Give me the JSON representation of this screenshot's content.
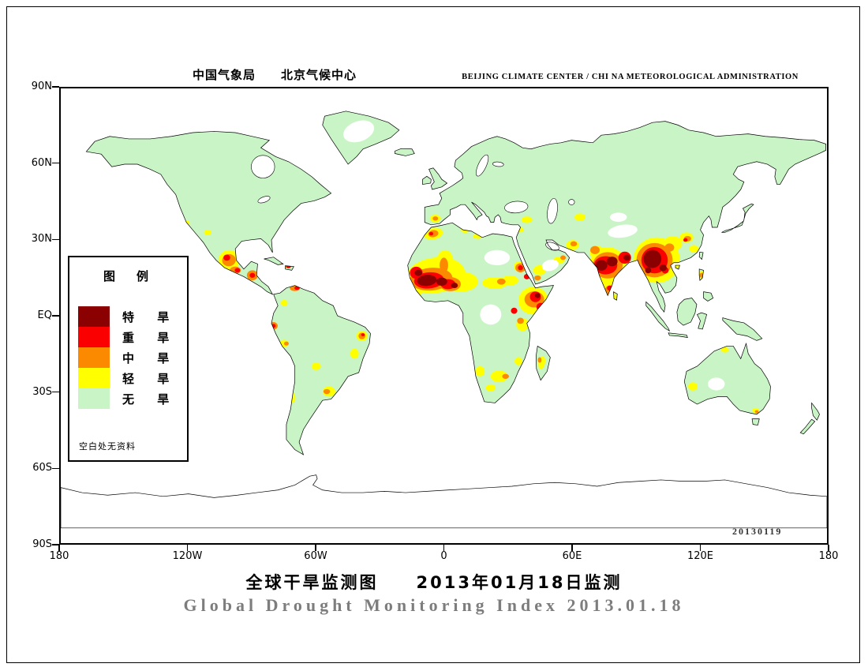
{
  "header": {
    "left": "中国气象局　　北京气候中心",
    "right": "BEIJING CLIMATE CENTER / CHI NA METEOROLOGICAL ADMINISTRATION"
  },
  "footer": {
    "title_cn": "全球干旱监测图　　2013年01月18日监测",
    "title_en": "Global Drought Monitoring Index  2013.01.18"
  },
  "map": {
    "datestamp": "20130119",
    "lat_ticks": [
      {
        "label": "90N",
        "lat": 90
      },
      {
        "label": "60N",
        "lat": 60
      },
      {
        "label": "30N",
        "lat": 30
      },
      {
        "label": "EQ",
        "lat": 0
      },
      {
        "label": "30S",
        "lat": -30
      },
      {
        "label": "60S",
        "lat": -60
      },
      {
        "label": "90S",
        "lat": -90
      }
    ],
    "lon_ticks": [
      {
        "label": "180",
        "lon": -180
      },
      {
        "label": "120W",
        "lon": -120
      },
      {
        "label": "60W",
        "lon": -60
      },
      {
        "label": "0",
        "lon": 0
      },
      {
        "label": "60E",
        "lon": 60
      },
      {
        "label": "120E",
        "lon": 120
      },
      {
        "label": "180",
        "lon": 180
      }
    ]
  },
  "legend": {
    "title": "图　例",
    "note": "空白处无资料",
    "items": [
      {
        "label": "特 旱",
        "level": "extreme"
      },
      {
        "label": "重 旱",
        "level": "severe"
      },
      {
        "label": "中 旱",
        "level": "moderate"
      },
      {
        "label": "轻 旱",
        "level": "light"
      },
      {
        "label": "无 旱",
        "level": "none"
      }
    ]
  },
  "colors": {
    "extreme": "#8b0000",
    "severe": "#fb0000",
    "moderate": "#fc8a00",
    "light": "#ffff00",
    "none": "#c9f5c6",
    "ocean": "#ffffff",
    "coastline": "#000000"
  },
  "chart_data": {
    "type": "map",
    "projection": "equirectangular",
    "lon_range": [
      -180,
      180
    ],
    "lat_range": [
      -90,
      90
    ],
    "title_cn": "全球干旱监测图　　2013年01月18日监测",
    "title_en": "Global Drought Monitoring Index  2013.01.18",
    "levels": [
      "light",
      "moderate",
      "severe",
      "extreme"
    ],
    "spot_format": "[lon, lat, rx_deg, ry_deg, rotation_deg, level]",
    "drought_spots": [
      [
        -4,
        16,
        14,
        7,
        -8,
        "light"
      ],
      [
        8,
        13.5,
        8,
        4,
        0,
        "light"
      ],
      [
        0.5,
        21.5,
        4,
        4.5,
        0,
        "light"
      ],
      [
        -13,
        11,
        4,
        3,
        0,
        "light"
      ],
      [
        -5,
        32.5,
        4.5,
        2.3,
        -10,
        "light"
      ],
      [
        -4,
        38.5,
        2.6,
        1.5,
        0,
        "light"
      ],
      [
        10,
        34,
        2,
        1.2,
        0,
        "light"
      ],
      [
        16,
        31.5,
        2.2,
        1.1,
        0,
        "light"
      ],
      [
        24,
        13,
        6,
        2.3,
        0,
        "light"
      ],
      [
        31,
        14,
        4,
        2,
        0,
        "light"
      ],
      [
        35.5,
        19.5,
        2.6,
        2,
        0,
        "light"
      ],
      [
        42,
        6,
        7,
        5.5,
        0,
        "light"
      ],
      [
        37,
        -3.5,
        3,
        2.5,
        0,
        "light"
      ],
      [
        26,
        -24,
        4,
        2.3,
        0,
        "light"
      ],
      [
        17,
        -22,
        2.2,
        2,
        0,
        "light"
      ],
      [
        22,
        -28.5,
        2.3,
        1.4,
        0,
        "light"
      ],
      [
        35,
        -18,
        1.8,
        1.6,
        0,
        "light"
      ],
      [
        46,
        -18.5,
        1.6,
        2.6,
        10,
        "light"
      ],
      [
        45,
        18,
        3,
        2,
        0,
        "light"
      ],
      [
        54,
        22,
        2.6,
        1.5,
        0,
        "light"
      ],
      [
        39,
        38,
        2.6,
        1.3,
        0,
        "light"
      ],
      [
        36,
        34,
        1.6,
        1,
        0,
        "light"
      ],
      [
        60.5,
        28,
        3,
        2,
        0,
        "light"
      ],
      [
        64,
        39,
        2.6,
        1.5,
        0,
        "light"
      ],
      [
        77,
        19,
        9,
        8.2,
        0,
        "light"
      ],
      [
        72,
        25,
        3.5,
        2.6,
        0,
        "light"
      ],
      [
        80.5,
        7.6,
        1.2,
        1,
        0,
        "light"
      ],
      [
        100,
        22,
        11,
        9,
        0,
        "light"
      ],
      [
        107.5,
        28.5,
        4.5,
        3,
        0,
        "light"
      ],
      [
        114,
        31,
        3.2,
        2,
        0,
        "light"
      ],
      [
        117.5,
        26.5,
        2.2,
        1.5,
        0,
        "light"
      ],
      [
        121,
        16,
        1.3,
        1.7,
        0,
        "light"
      ],
      [
        -101,
        22,
        5,
        4,
        -10,
        "light"
      ],
      [
        -121,
        36.5,
        1.6,
        1.3,
        0,
        "light"
      ],
      [
        -111,
        33,
        1.7,
        1.1,
        0,
        "light"
      ],
      [
        -75,
        5,
        1.6,
        1.3,
        0,
        "light"
      ],
      [
        -75,
        -11,
        2,
        1.5,
        0,
        "light"
      ],
      [
        -38.5,
        -8,
        2.6,
        2,
        0,
        "light"
      ],
      [
        -42,
        -15,
        2,
        2,
        0,
        "light"
      ],
      [
        -54,
        -30,
        3,
        2,
        0,
        "light"
      ],
      [
        -71,
        -32.5,
        1.3,
        2,
        0,
        "light"
      ],
      [
        -60,
        -20,
        2.2,
        1.5,
        0,
        "light"
      ],
      [
        117,
        -28,
        2.2,
        1.6,
        0,
        "light"
      ],
      [
        132,
        -13.5,
        1.7,
        1.1,
        0,
        "light"
      ],
      [
        146.5,
        -37.5,
        1.7,
        1,
        0,
        "light"
      ],
      [
        -6,
        14.5,
        10,
        4.5,
        -5,
        "moderate"
      ],
      [
        3,
        12.5,
        5,
        2.8,
        0,
        "moderate"
      ],
      [
        0,
        20,
        2,
        3,
        0,
        "moderate"
      ],
      [
        -5,
        32.5,
        2.4,
        1.4,
        -10,
        "moderate"
      ],
      [
        -4,
        38.5,
        1.3,
        0.8,
        0,
        "moderate"
      ],
      [
        27,
        13.5,
        2,
        1.2,
        0,
        "moderate"
      ],
      [
        36,
        19,
        2.4,
        1.8,
        0,
        "moderate"
      ],
      [
        42.5,
        6.5,
        4.6,
        3.2,
        0,
        "moderate"
      ],
      [
        36,
        -2,
        1.6,
        1.2,
        0,
        "moderate"
      ],
      [
        29,
        -24,
        1.6,
        1,
        0,
        "moderate"
      ],
      [
        45,
        -17.5,
        0.9,
        1.1,
        0,
        "moderate"
      ],
      [
        44,
        15,
        1.6,
        1,
        0,
        "moderate"
      ],
      [
        56,
        23,
        1.3,
        0.9,
        0,
        "moderate"
      ],
      [
        61,
        28.5,
        1.6,
        1,
        0,
        "moderate"
      ],
      [
        77,
        20,
        7,
        5.2,
        0,
        "moderate"
      ],
      [
        71,
        26,
        2.2,
        1.6,
        0,
        "moderate"
      ],
      [
        78,
        10,
        2.4,
        2,
        0,
        "moderate"
      ],
      [
        99,
        22,
        8.5,
        6.8,
        0,
        "moderate"
      ],
      [
        106,
        27,
        2.2,
        1.6,
        0,
        "moderate"
      ],
      [
        114.5,
        30.5,
        1.7,
        1.1,
        0,
        "moderate"
      ],
      [
        121,
        16,
        0.8,
        1,
        0,
        "moderate"
      ],
      [
        -101,
        22,
        3.2,
        2.4,
        -10,
        "moderate"
      ],
      [
        -98,
        18,
        2.6,
        1.5,
        0,
        "moderate"
      ],
      [
        -90,
        16,
        2.6,
        2,
        0,
        "moderate"
      ],
      [
        -75,
        20,
        2.2,
        1,
        0,
        "moderate"
      ],
      [
        -70,
        11,
        2.4,
        1.2,
        0,
        "moderate"
      ],
      [
        -80,
        -4,
        2,
        1.5,
        0,
        "moderate"
      ],
      [
        -74,
        -11,
        1.1,
        0.8,
        0,
        "moderate"
      ],
      [
        -38.5,
        -8,
        1.6,
        1.3,
        0,
        "moderate"
      ],
      [
        -55,
        -30,
        1.6,
        1,
        0,
        "moderate"
      ],
      [
        147,
        -38,
        0.9,
        0.6,
        0,
        "moderate"
      ],
      [
        -7,
        14,
        7,
        3.2,
        -5,
        "severe"
      ],
      [
        2,
        12.5,
        3.5,
        2,
        0,
        "severe"
      ],
      [
        -13,
        17,
        3,
        2.4,
        0,
        "severe"
      ],
      [
        36,
        19,
        1.2,
        1,
        0,
        "severe"
      ],
      [
        39,
        15.5,
        1.4,
        1.1,
        0,
        "severe"
      ],
      [
        43,
        7.5,
        2.6,
        2.1,
        0,
        "severe"
      ],
      [
        45.5,
        3.5,
        2,
        1.6,
        0,
        "severe"
      ],
      [
        33,
        2,
        1.5,
        1.2,
        0,
        "severe"
      ],
      [
        76,
        20,
        5.5,
        3.6,
        0,
        "severe"
      ],
      [
        78,
        11,
        1.4,
        1,
        0,
        "severe"
      ],
      [
        85,
        23,
        3,
        2.4,
        0,
        "severe"
      ],
      [
        99,
        22,
        6.2,
        5.2,
        0,
        "severe"
      ],
      [
        104,
        18,
        1.6,
        1.3,
        0,
        "severe"
      ],
      [
        113.5,
        30,
        1,
        0.7,
        0,
        "severe"
      ],
      [
        -102,
        23,
        1.6,
        1.2,
        0,
        "severe"
      ],
      [
        -97,
        18,
        1.3,
        0.9,
        0,
        "severe"
      ],
      [
        -90,
        16,
        1.3,
        1,
        0,
        "severe"
      ],
      [
        -73,
        19.5,
        1.1,
        0.7,
        0,
        "severe"
      ],
      [
        -69,
        11,
        1.2,
        0.7,
        0,
        "severe"
      ],
      [
        -80,
        -4,
        1,
        0.8,
        0,
        "severe"
      ],
      [
        -38,
        -7.5,
        0.9,
        0.6,
        0,
        "severe"
      ],
      [
        -6,
        32.5,
        1,
        0.7,
        0,
        "severe"
      ],
      [
        -8,
        14,
        4.6,
        2.2,
        -5,
        "extreme"
      ],
      [
        -1,
        13.5,
        2.6,
        1.6,
        0,
        "extreme"
      ],
      [
        5,
        12,
        1.6,
        1.1,
        0,
        "extreme"
      ],
      [
        -12,
        17,
        1.8,
        1.2,
        0,
        "extreme"
      ],
      [
        44,
        8,
        1.3,
        1,
        0,
        "extreme"
      ],
      [
        74,
        20,
        2.8,
        2.1,
        0,
        "extreme"
      ],
      [
        79,
        21.5,
        2.6,
        1.9,
        0,
        "extreme"
      ],
      [
        86,
        23,
        1.6,
        1.2,
        0,
        "extreme"
      ],
      [
        98,
        22.5,
        4.2,
        3.6,
        0,
        "extreme"
      ],
      [
        103,
        19,
        1.7,
        1.3,
        0,
        "extreme"
      ],
      [
        96,
        18,
        1.4,
        1.2,
        0,
        "extreme"
      ]
    ]
  }
}
